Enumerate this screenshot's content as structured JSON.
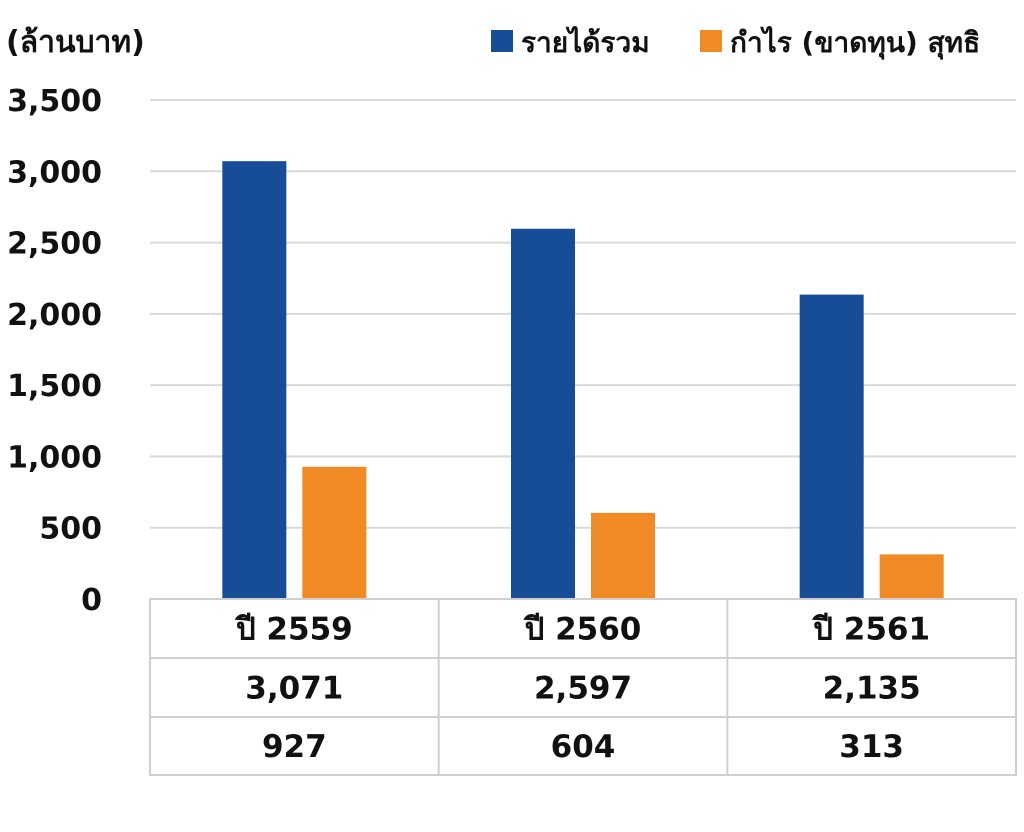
{
  "chart_data": {
    "type": "bar",
    "unit_label": "(ล้านบาท)",
    "categories": [
      "ปี 2559",
      "ปี 2560",
      "ปี 2561"
    ],
    "series": [
      {
        "name": "รายได้รวม",
        "color": "#174c97",
        "values": [
          3071,
          2597,
          2135
        ]
      },
      {
        "name": "กำไร (ขาดทุน) สุทธิ",
        "color": "#ef8a25",
        "values": [
          927,
          604,
          313
        ]
      }
    ],
    "ylim": [
      0,
      3500
    ],
    "yticks": [
      0,
      500,
      1000,
      1500,
      2000,
      2500,
      3000,
      3500
    ],
    "ytick_labels": [
      "0",
      "500",
      "1,000",
      "1,500",
      "2,000",
      "2,500",
      "3,000",
      "3,500"
    ],
    "grid": true,
    "legend_position": "top-right",
    "data_table": {
      "rows": [
        [
          "3,071",
          "2,597",
          "2,135"
        ],
        [
          "927",
          "604",
          "313"
        ]
      ]
    }
  }
}
